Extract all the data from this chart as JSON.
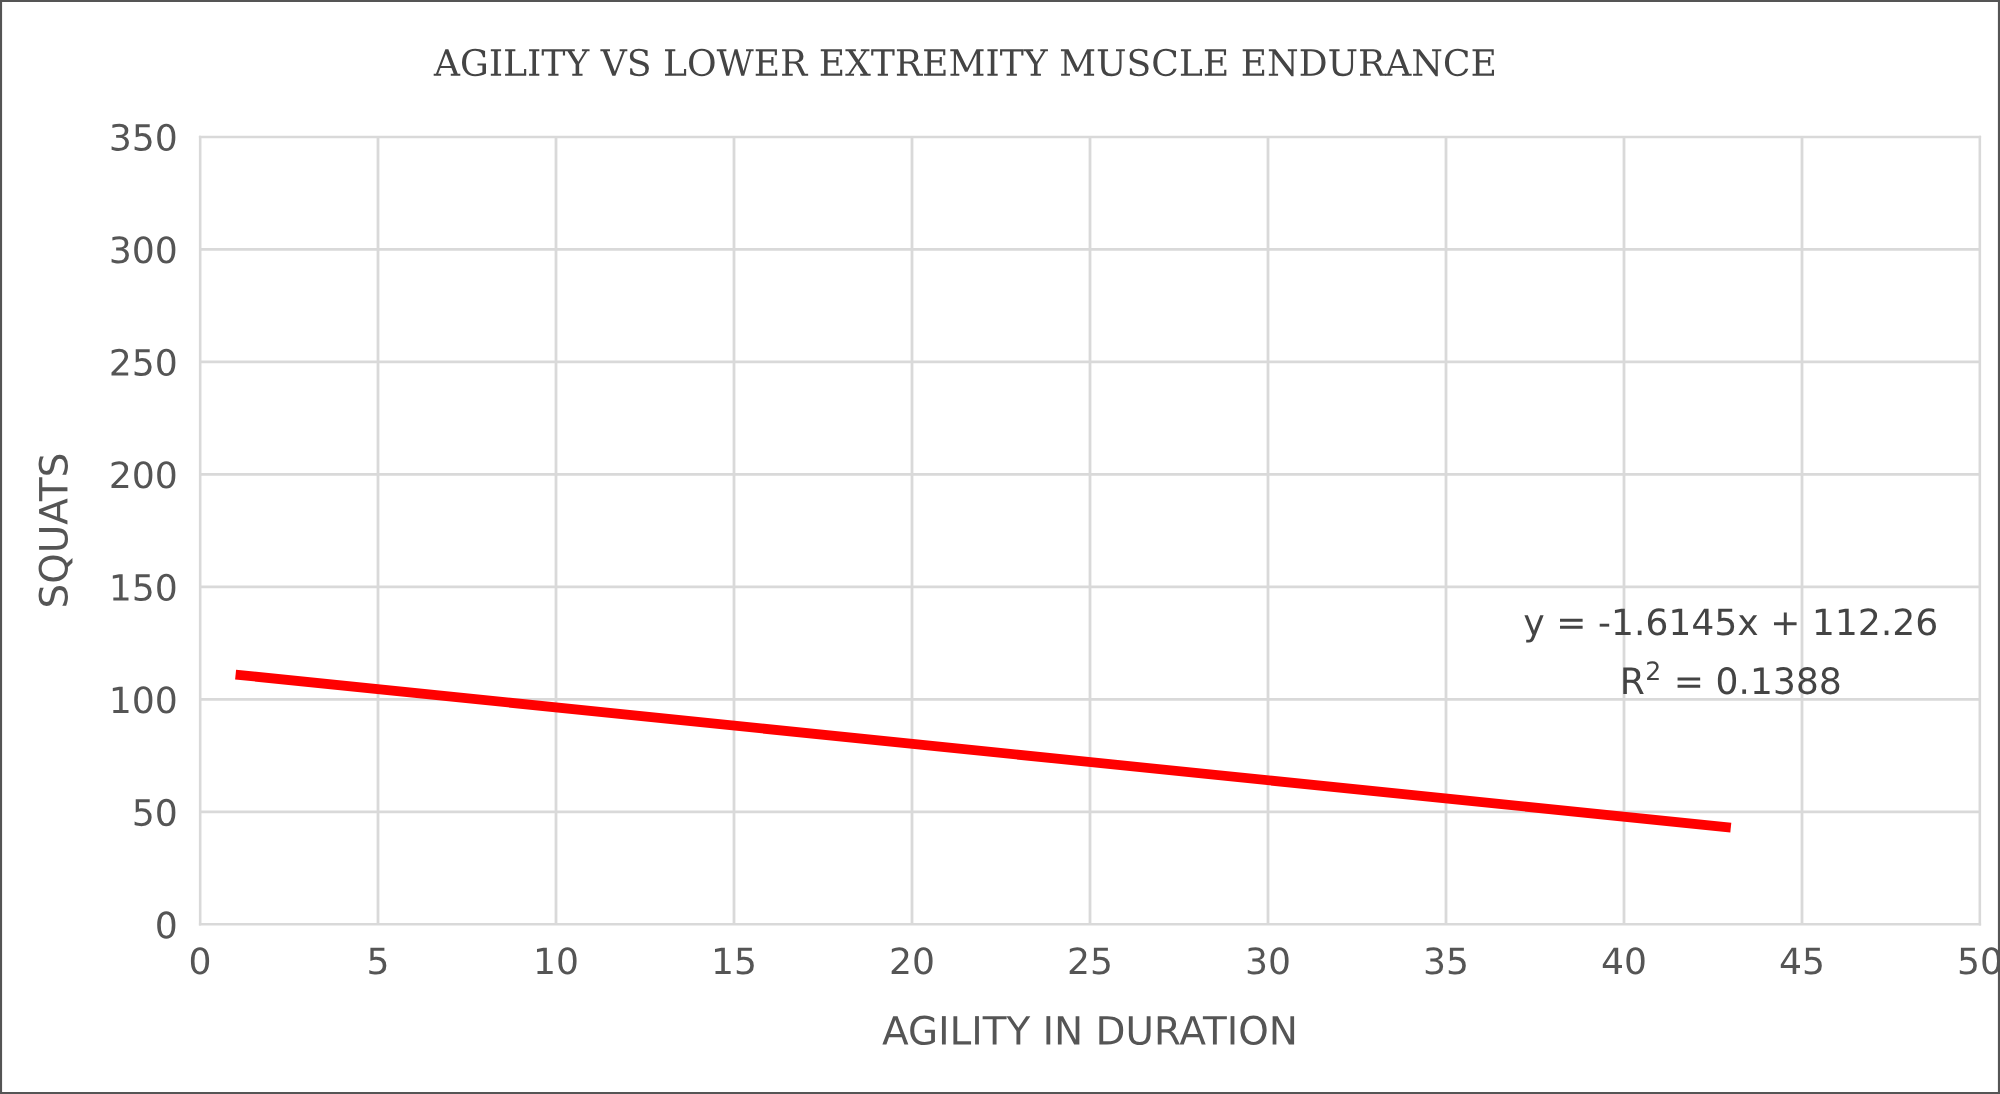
{
  "chart_data": {
    "type": "line",
    "title": "AGILITY VS LOWER EXTREMITY MUSCLE ENDURANCE",
    "xlabel": "AGILITY IN DURATION",
    "ylabel": "SQUATS",
    "series": [
      {
        "color": "#ff0000",
        "x": [
          1,
          43
        ],
        "values": [
          111,
          43
        ]
      }
    ],
    "annotations": [
      "y = -1.6145x + 112.26",
      "R$^{2}$ = 0.1388"
    ],
    "xlim": [
      0,
      50
    ],
    "xticks": [
      0,
      5,
      10,
      15,
      20,
      25,
      30,
      35,
      40,
      45,
      50
    ],
    "ylim": [
      0,
      350
    ],
    "yticks": [
      0,
      50,
      100,
      150,
      200,
      250,
      300,
      350
    ],
    "grid": true,
    "marker": "none",
    "line_style": "solid"
  }
}
